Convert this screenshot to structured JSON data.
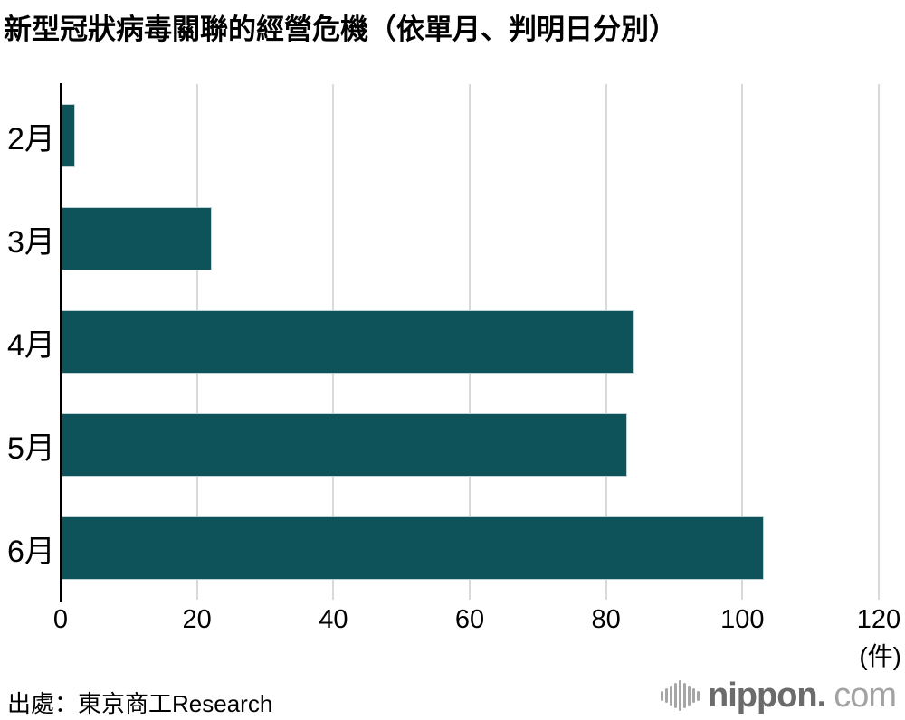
{
  "chart_data": {
    "type": "bar",
    "orientation": "horizontal",
    "title": "新型冠狀病毒關聯的經營危機（依單月、判明日分別）",
    "categories": [
      "2月",
      "3月",
      "4月",
      "5月",
      "6月"
    ],
    "values": [
      2,
      22,
      84,
      83,
      103
    ],
    "xlim": [
      0,
      120
    ],
    "xticks": [
      0,
      20,
      40,
      60,
      80,
      100,
      120
    ],
    "unit_label": "(件)",
    "bar_color": "#0e525a",
    "gridline_color": "#d9d9d9",
    "axis_color": "#000000",
    "grid": true,
    "legend": false
  },
  "source": {
    "text": "出處：東京商工Research"
  },
  "logo": {
    "icon": "waveform-icon",
    "bold": "nippon.",
    "light": "com"
  }
}
